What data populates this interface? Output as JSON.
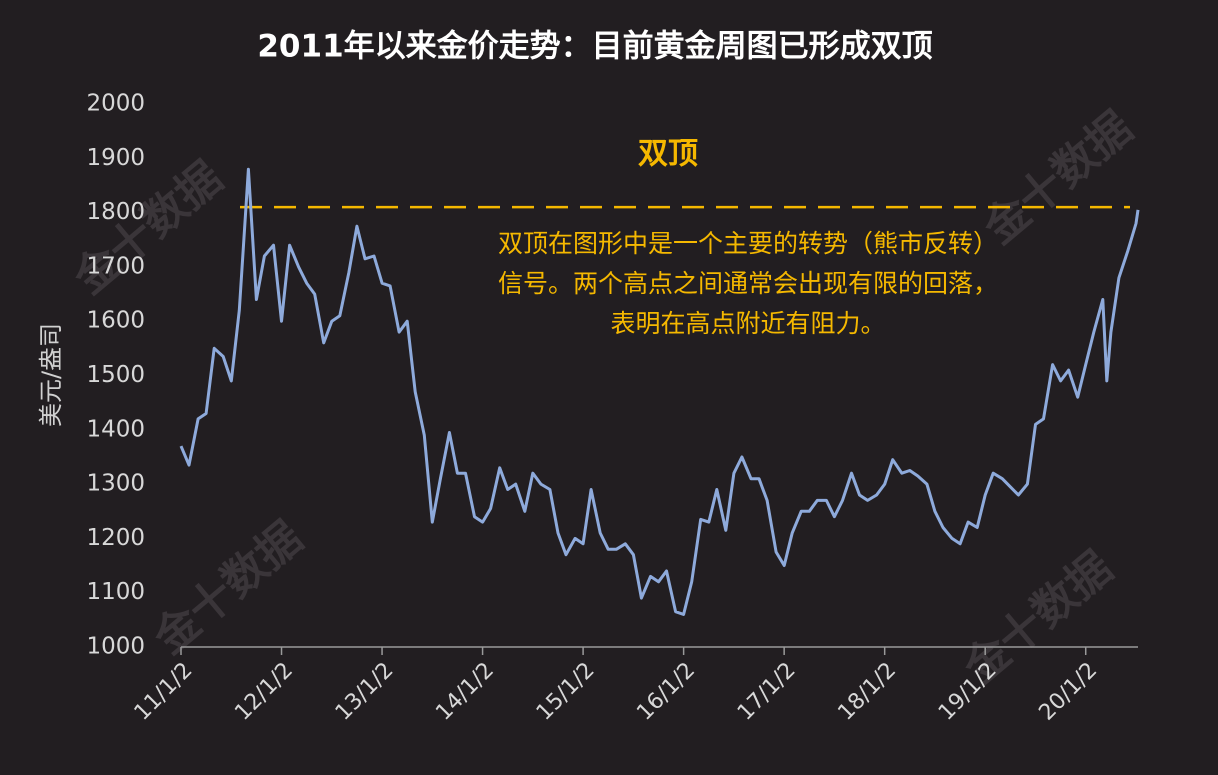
{
  "chart_data": {
    "type": "line",
    "title": "2011年以来金价走势：目前黄金周图已形成双顶",
    "y_label": "美元/盎司",
    "watermark": "金十数据",
    "series": [
      {
        "name": "金价",
        "color": "#8eaadb",
        "x": [
          2011,
          2011.08,
          2011.17,
          2011.25,
          2011.33,
          2011.42,
          2011.5,
          2011.58,
          2011.67,
          2011.75,
          2011.83,
          2011.92,
          2012,
          2012.08,
          2012.17,
          2012.25,
          2012.33,
          2012.42,
          2012.5,
          2012.58,
          2012.67,
          2012.75,
          2012.83,
          2012.92,
          2013,
          2013.08,
          2013.17,
          2013.25,
          2013.33,
          2013.42,
          2013.5,
          2013.58,
          2013.67,
          2013.75,
          2013.83,
          2013.92,
          2014,
          2014.08,
          2014.17,
          2014.25,
          2014.33,
          2014.42,
          2014.5,
          2014.58,
          2014.67,
          2014.75,
          2014.83,
          2014.92,
          2015,
          2015.08,
          2015.17,
          2015.25,
          2015.33,
          2015.42,
          2015.5,
          2015.58,
          2015.67,
          2015.75,
          2015.83,
          2015.92,
          2016,
          2016.08,
          2016.17,
          2016.25,
          2016.33,
          2016.42,
          2016.5,
          2016.58,
          2016.67,
          2016.75,
          2016.83,
          2016.92,
          2017,
          2017.08,
          2017.17,
          2017.25,
          2017.33,
          2017.42,
          2017.5,
          2017.58,
          2017.67,
          2017.75,
          2017.83,
          2017.92,
          2018,
          2018.08,
          2018.17,
          2018.25,
          2018.33,
          2018.42,
          2018.5,
          2018.58,
          2018.67,
          2018.75,
          2018.83,
          2018.92,
          2019,
          2019.08,
          2019.17,
          2019.25,
          2019.33,
          2019.42,
          2019.5,
          2019.58,
          2019.67,
          2019.75,
          2019.83,
          2019.92,
          2020,
          2020.08,
          2020.17,
          2020.21,
          2020.25,
          2020.33,
          2020.42,
          2020.5,
          2020.52
        ],
        "values": [
          1370,
          1335,
          1420,
          1430,
          1550,
          1535,
          1490,
          1620,
          1880,
          1640,
          1720,
          1740,
          1600,
          1740,
          1700,
          1670,
          1650,
          1560,
          1600,
          1610,
          1690,
          1775,
          1715,
          1720,
          1670,
          1665,
          1580,
          1600,
          1470,
          1390,
          1230,
          1310,
          1395,
          1320,
          1320,
          1240,
          1230,
          1255,
          1330,
          1290,
          1300,
          1250,
          1320,
          1300,
          1290,
          1210,
          1170,
          1200,
          1190,
          1290,
          1210,
          1180,
          1180,
          1190,
          1170,
          1090,
          1130,
          1120,
          1140,
          1065,
          1060,
          1120,
          1235,
          1230,
          1290,
          1215,
          1320,
          1350,
          1310,
          1310,
          1270,
          1175,
          1150,
          1210,
          1250,
          1250,
          1270,
          1270,
          1240,
          1270,
          1320,
          1280,
          1270,
          1280,
          1300,
          1345,
          1320,
          1325,
          1315,
          1300,
          1250,
          1220,
          1200,
          1190,
          1230,
          1220,
          1280,
          1320,
          1310,
          1295,
          1280,
          1300,
          1410,
          1420,
          1520,
          1490,
          1510,
          1460,
          1520,
          1580,
          1640,
          1490,
          1580,
          1680,
          1730,
          1780,
          1805
        ]
      }
    ],
    "xlim": [
      2011,
      2020.52
    ],
    "xticks": [
      {
        "value": 2011,
        "label": "11/1/2"
      },
      {
        "value": 2012,
        "label": "12/1/2"
      },
      {
        "value": 2013,
        "label": "13/1/2"
      },
      {
        "value": 2014,
        "label": "14/1/2"
      },
      {
        "value": 2015,
        "label": "15/1/2"
      },
      {
        "value": 2016,
        "label": "16/1/2"
      },
      {
        "value": 2017,
        "label": "17/1/2"
      },
      {
        "value": 2018,
        "label": "18/1/2"
      },
      {
        "value": 2019,
        "label": "19/1/2"
      },
      {
        "value": 2020,
        "label": "20/1/2"
      }
    ],
    "ylim": [
      1000,
      2000
    ],
    "yticks": [
      1000,
      1100,
      1200,
      1300,
      1400,
      1500,
      1600,
      1700,
      1800,
      1900,
      2000
    ],
    "reference_line": {
      "value": 1810,
      "color": "#f5b800",
      "label": "双顶"
    },
    "annotation_lines": [
      "双顶在图形中是一个主要的转势（熊市反转）",
      "信号。两个高点之间通常会出现有限的回落，",
      "表明在高点附近有阻力。"
    ]
  }
}
